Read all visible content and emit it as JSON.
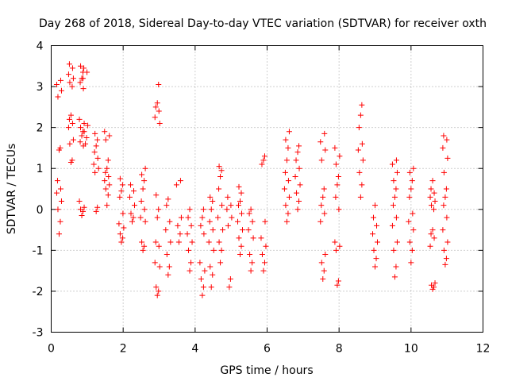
{
  "chart_data": {
    "type": "scatter",
    "title": "Day 268 of 2018, Sidereal Day-to-day VTEC variation (SDTVAR) for receiver oxth",
    "xlabel": "GPS time / hours",
    "ylabel": "SDTVAR / TECUs",
    "xlim": [
      0,
      12
    ],
    "ylim": [
      -3,
      4
    ],
    "xticks": [
      "0",
      "2",
      "4",
      "6",
      "8",
      "10",
      "12"
    ],
    "yticks": [
      "-3",
      "-2",
      "-1",
      "0",
      "1",
      "2",
      "3",
      "4"
    ],
    "grid": true,
    "marker": "+",
    "color": "#ff0000",
    "clusters": [
      {
        "x": 0.22,
        "y": [
          -0.6,
          -0.3,
          0.0,
          0.2,
          0.4,
          0.5,
          0.7,
          1.45,
          1.5,
          2.75,
          2.9,
          3.05,
          3.15
        ]
      },
      {
        "x": 0.55,
        "y": [
          1.15,
          1.2,
          1.6,
          1.7,
          2.0,
          2.1,
          2.2,
          2.3,
          3.0,
          3.1,
          3.2,
          3.3,
          3.45,
          3.55
        ]
      },
      {
        "x": 0.85,
        "y": [
          -0.15,
          -0.05,
          0.0,
          0.05,
          0.2,
          1.55,
          1.65,
          1.8,
          1.9,
          2.0,
          2.1,
          2.2,
          2.95,
          3.1,
          3.2,
          3.35,
          3.5
        ]
      },
      {
        "x": 0.95,
        "y": [
          1.6,
          1.75,
          1.9,
          2.05,
          3.2,
          3.35,
          3.45
        ]
      },
      {
        "x": 1.25,
        "y": [
          -0.05,
          0.05,
          0.9,
          1.0,
          1.1,
          1.25,
          1.4,
          1.55,
          1.7,
          1.85
        ]
      },
      {
        "x": 1.55,
        "y": [
          0.1,
          0.35,
          0.5,
          0.6,
          0.7,
          0.8,
          0.9,
          1.0,
          1.2,
          1.7,
          1.8,
          1.9
        ]
      },
      {
        "x": 1.95,
        "y": [
          -0.8,
          -0.7,
          -0.6,
          -0.45,
          -0.35,
          -0.1,
          0.3,
          0.45,
          0.6,
          0.75
        ]
      },
      {
        "x": 2.25,
        "y": [
          -0.3,
          -0.2,
          -0.1,
          0.1,
          0.3,
          0.45,
          0.6
        ]
      },
      {
        "x": 2.55,
        "y": [
          -1.0,
          -0.9,
          -0.8,
          -0.3,
          -0.2,
          0.0,
          0.2,
          0.5,
          0.7,
          0.85,
          1.0
        ]
      },
      {
        "x": 2.95,
        "y": [
          -2.1,
          -2.0,
          -1.9,
          -1.4,
          -1.3,
          -0.9,
          -0.8,
          -0.2,
          0.0,
          0.35,
          2.1,
          2.25,
          2.4,
          2.5,
          2.6,
          3.05
        ]
      },
      {
        "x": 3.25,
        "y": [
          -1.6,
          -1.4,
          -1.1,
          -0.8,
          -0.5,
          -0.3,
          0.1,
          0.25
        ]
      },
      {
        "x": 3.55,
        "y": [
          -0.8,
          -0.6,
          -0.4,
          -0.2,
          0.6,
          0.7
        ]
      },
      {
        "x": 3.85,
        "y": [
          -1.5,
          -1.3,
          -1.0,
          -0.8,
          -0.6,
          -0.4,
          -0.2,
          0.0
        ]
      },
      {
        "x": 4.2,
        "y": [
          -2.1,
          -1.9,
          -1.7,
          -1.5,
          -1.3,
          -0.6,
          -0.4,
          -0.2,
          0.0
        ]
      },
      {
        "x": 4.45,
        "y": [
          -1.9,
          -1.6,
          -1.4,
          -1.0,
          -0.8,
          -0.5,
          -0.3,
          0.0,
          0.2,
          0.3
        ]
      },
      {
        "x": 4.7,
        "y": [
          -1.3,
          -1.0,
          -0.8,
          -0.5,
          -0.2,
          0.1,
          0.5,
          0.8,
          0.95,
          1.05
        ]
      },
      {
        "x": 4.95,
        "y": [
          -1.9,
          -1.7,
          -0.4,
          -0.2,
          0.0,
          0.1,
          0.3
        ]
      },
      {
        "x": 5.25,
        "y": [
          -1.1,
          -0.9,
          -0.7,
          -0.5,
          -0.3,
          -0.1,
          0.1,
          0.2,
          0.4,
          0.55
        ]
      },
      {
        "x": 5.55,
        "y": [
          -1.5,
          -1.3,
          -1.1,
          -0.7,
          -0.5,
          -0.3,
          -0.1,
          0.0
        ]
      },
      {
        "x": 5.9,
        "y": [
          -1.5,
          -1.3,
          -1.1,
          -0.9,
          -0.7,
          -0.3,
          1.1,
          1.2,
          1.3
        ]
      },
      {
        "x": 6.55,
        "y": [
          -0.3,
          -0.1,
          0.1,
          0.3,
          0.5,
          0.7,
          0.9,
          1.2,
          1.5,
          1.7,
          1.9
        ]
      },
      {
        "x": 6.85,
        "y": [
          0.0,
          0.2,
          0.4,
          0.6,
          0.8,
          1.0,
          1.2,
          1.4,
          1.55
        ]
      },
      {
        "x": 7.55,
        "y": [
          -1.7,
          -1.5,
          -1.3,
          -1.1,
          -0.3,
          -0.1,
          0.1,
          0.3,
          0.5,
          1.2,
          1.45,
          1.65,
          1.85
        ]
      },
      {
        "x": 7.95,
        "y": [
          -1.85,
          -1.75,
          -1.0,
          -0.9,
          -0.8,
          0.0,
          0.3,
          0.6,
          0.8,
          1.1,
          1.3,
          1.5
        ]
      },
      {
        "x": 8.6,
        "y": [
          0.3,
          0.6,
          0.9,
          1.2,
          1.45,
          1.6,
          2.0,
          2.3,
          2.55
        ]
      },
      {
        "x": 9.0,
        "y": [
          -1.4,
          -1.2,
          -1.0,
          -0.8,
          -0.6,
          -0.4,
          -0.2,
          0.1
        ]
      },
      {
        "x": 9.55,
        "y": [
          -1.65,
          -1.4,
          -1.0,
          -0.8,
          -0.4,
          -0.2,
          0.1,
          0.3,
          0.5,
          0.7,
          0.9,
          1.1,
          1.2
        ]
      },
      {
        "x": 10.0,
        "y": [
          -1.3,
          -1.0,
          -0.8,
          -0.5,
          -0.3,
          -0.1,
          0.3,
          0.5,
          0.7,
          0.9,
          1.0
        ]
      },
      {
        "x": 10.6,
        "y": [
          -1.95,
          -1.9,
          -1.85,
          -1.8,
          -0.9,
          -0.7,
          -0.6,
          -0.5,
          0.0,
          0.1,
          0.2,
          0.3,
          0.4,
          0.5,
          0.7
        ]
      },
      {
        "x": 10.95,
        "y": [
          -1.35,
          -1.2,
          -1.0,
          -0.8,
          -0.5,
          -0.2,
          0.1,
          0.3,
          0.5,
          0.9,
          1.25,
          1.5,
          1.7,
          1.8
        ]
      }
    ]
  }
}
